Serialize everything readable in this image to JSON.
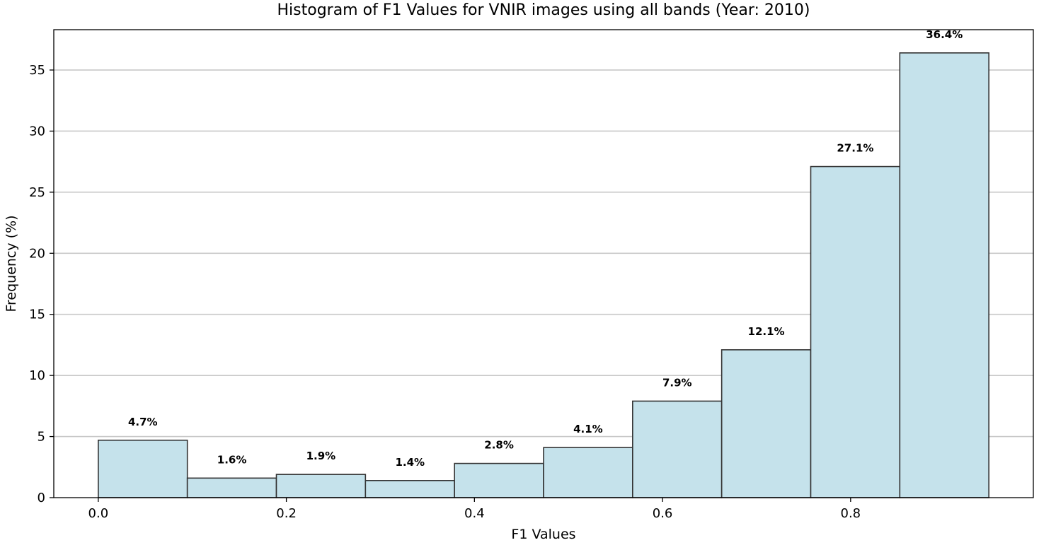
{
  "chart_data": {
    "type": "bar",
    "title": "Histogram of F1 Values for VNIR images using all bands (Year: 2010)",
    "xlabel": "F1 Values",
    "ylabel": "Frequency (%)",
    "bin_edges": [
      0.0,
      0.0947,
      0.1894,
      0.2841,
      0.3788,
      0.4735,
      0.5682,
      0.6629,
      0.7576,
      0.8523,
      0.947
    ],
    "values": [
      4.7,
      1.6,
      1.9,
      1.4,
      2.8,
      4.1,
      7.9,
      12.1,
      27.1,
      36.4
    ],
    "value_labels": [
      "4.7%",
      "1.6%",
      "1.9%",
      "1.4%",
      "2.8%",
      "4.1%",
      "7.9%",
      "12.1%",
      "27.1%",
      "36.4%"
    ],
    "xticks": [
      0.0,
      0.2,
      0.4,
      0.6,
      0.8
    ],
    "xtick_labels": [
      "0.0",
      "0.2",
      "0.4",
      "0.6",
      "0.8"
    ],
    "yticks": [
      0,
      5,
      10,
      15,
      20,
      25,
      30,
      35
    ],
    "ytick_labels": [
      "0",
      "5",
      "10",
      "15",
      "20",
      "25",
      "30",
      "35"
    ],
    "xlim": [
      -0.0473,
      0.9943
    ],
    "ylim": [
      0,
      38.3
    ],
    "grid": "y",
    "bar_color": "#c5e2eb",
    "edge_color": "#333333"
  }
}
